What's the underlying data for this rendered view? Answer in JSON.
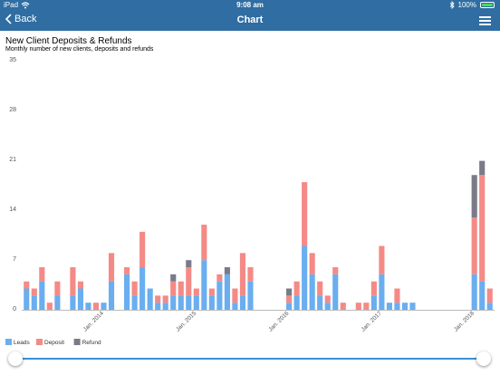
{
  "status": {
    "device": "iPad",
    "time": "9:08 am",
    "battery": "100%"
  },
  "nav": {
    "back_label": "Back",
    "title": "Chart"
  },
  "chart_data": {
    "type": "bar",
    "stacked": true,
    "title": "New Client Deposits & Refunds",
    "subtitle": "Monthly number of new clients, deposits and refunds",
    "ylim": [
      0,
      35
    ],
    "y_ticks": [
      "0",
      "7",
      "14",
      "21",
      "28",
      "35"
    ],
    "x_tick_labels": [
      "Jan. 2014",
      "Jan. 2015",
      "Jan. 2016",
      "Jan. 2017",
      "Jan. 2018"
    ],
    "series": [
      {
        "name": "Leads",
        "color": "#6aaeef",
        "values": [
          3,
          2,
          4,
          0,
          2,
          0,
          2,
          3,
          1,
          0,
          1,
          4,
          0,
          5,
          2,
          6,
          3,
          1,
          1,
          2,
          2,
          2,
          2,
          7,
          2,
          4,
          5,
          1,
          2,
          4,
          0,
          0,
          0,
          0,
          1,
          2,
          9,
          5,
          2,
          1,
          5,
          0,
          0,
          0,
          0,
          2,
          5,
          1,
          1,
          1,
          1,
          0,
          0,
          0,
          0,
          0,
          0,
          0,
          5,
          4,
          1
        ]
      },
      {
        "name": "Deposit",
        "color": "#f48a86",
        "values": [
          1,
          1,
          2,
          1,
          2,
          0,
          4,
          1,
          0,
          1,
          0,
          4,
          0,
          1,
          2,
          5,
          0,
          1,
          1,
          2,
          2,
          4,
          1,
          5,
          1,
          1,
          0,
          2,
          6,
          2,
          0,
          0,
          0,
          0,
          1,
          2,
          9,
          3,
          2,
          1,
          1,
          1,
          0,
          1,
          1,
          2,
          4,
          0,
          2,
          0,
          0,
          0,
          0,
          0,
          0,
          0,
          0,
          0,
          8,
          15,
          2
        ]
      },
      {
        "name": "Refund",
        "color": "#7a7a88",
        "values": [
          0,
          0,
          0,
          0,
          0,
          0,
          0,
          0,
          0,
          0,
          0,
          0,
          0,
          0,
          0,
          0,
          0,
          0,
          0,
          1,
          0,
          1,
          0,
          0,
          0,
          0,
          1,
          0,
          0,
          0,
          0,
          0,
          0,
          0,
          1,
          0,
          0,
          0,
          0,
          0,
          0,
          0,
          0,
          0,
          0,
          0,
          0,
          0,
          0,
          0,
          0,
          0,
          0,
          0,
          0,
          0,
          0,
          0,
          6,
          2,
          0
        ]
      }
    ],
    "legend": "bottom-left",
    "grid": false
  },
  "range_slider": {
    "start": 0,
    "end": 1
  }
}
